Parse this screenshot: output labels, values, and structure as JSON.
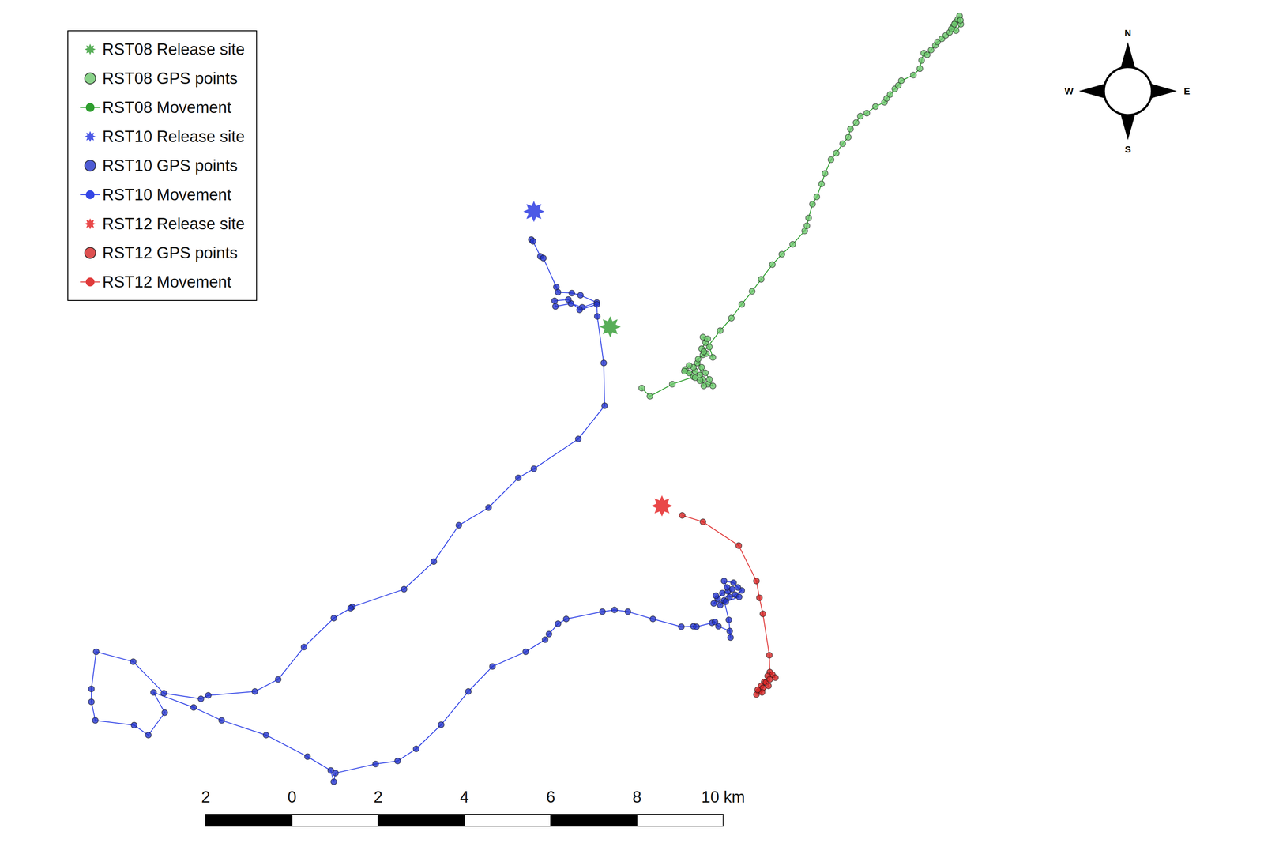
{
  "chart_data": {
    "type": "scatter",
    "xlim": [
      -6.77,
      22.54
    ],
    "ylim": [
      -0.52,
      19.01
    ],
    "tick_labels": false,
    "grid": false,
    "legend": "upper left",
    "compass": [
      "N",
      "E",
      "S",
      "W"
    ],
    "scale_bar": {
      "ticks": [
        {
          "value": -2,
          "label": "2"
        },
        0,
        2,
        4,
        6,
        8,
        {
          "value": 10,
          "label": "10 km"
        }
      ]
    },
    "tracks": [
      {
        "release_site": {
          "label": "RST08 Release site",
          "color": "#2e9a2e",
          "marker": "star",
          "x": 7.38,
          "y": 11.44
        },
        "gps_points": {
          "label": "RST08 GPS points",
          "color": "#6cc56c",
          "marker": "circle"
        },
        "movement": {
          "label": "RST08 Movement",
          "color": "#2e9e2e",
          "line_style": "solid"
        },
        "x": [
          8.11,
          8.3,
          8.82,
          9.31,
          9.12,
          9.21,
          9.35,
          9.46,
          9.53,
          9.64,
          9.76,
          9.68,
          9.59,
          9.5,
          9.4,
          9.31,
          9.21,
          9.1,
          9.35,
          9.46,
          9.55,
          9.42,
          9.53,
          9.61,
          9.76,
          9.68,
          9.59,
          9.53,
          9.64,
          9.5,
          9.55,
          9.93,
          10.19,
          10.43,
          10.67,
          10.88,
          11.14,
          11.36,
          11.61,
          11.89,
          11.94,
          11.98,
          12.07,
          12.17,
          12.28,
          12.36,
          12.5,
          12.62,
          12.77,
          12.9,
          12.95,
          13.08,
          13.18,
          13.33,
          13.53,
          13.74,
          13.79,
          13.87,
          13.98,
          14.06,
          14.13,
          14.41,
          14.56,
          14.6,
          14.65,
          14.73,
          14.82,
          14.92,
          14.97,
          15.07,
          15.16,
          15.25,
          15.33,
          15.38,
          15.44,
          15.48,
          15.51,
          15.4,
          15.29,
          15.36,
          15.5
        ],
        "y": [
          10.02,
          9.83,
          10.11,
          10.28,
          10.45,
          10.37,
          10.41,
          10.32,
          10.22,
          10.11,
          10.07,
          10.22,
          10.37,
          10.5,
          10.6,
          10.5,
          10.54,
          10.41,
          10.26,
          10.19,
          10.07,
          10.69,
          10.79,
          10.82,
          10.73,
          10.97,
          11.07,
          11.2,
          11.16,
          10.93,
          10.86,
          11.35,
          11.64,
          11.96,
          12.26,
          12.54,
          12.88,
          13.12,
          13.35,
          13.66,
          13.78,
          13.96,
          14.28,
          14.45,
          14.75,
          14.99,
          15.31,
          15.46,
          15.68,
          15.83,
          16.02,
          16.17,
          16.32,
          16.39,
          16.54,
          16.64,
          16.73,
          16.82,
          16.95,
          17.03,
          17.14,
          17.27,
          17.42,
          17.61,
          17.78,
          17.74,
          17.85,
          17.96,
          18.04,
          18.11,
          18.19,
          18.26,
          18.39,
          18.49,
          18.56,
          18.64,
          18.45,
          18.3,
          18.34,
          18.45,
          18.54
        ]
      },
      {
        "release_site": {
          "label": "RST10 Release site",
          "color": "#1f2fe0",
          "marker": "star",
          "x": 5.61,
          "y": 14.11
        },
        "gps_points": {
          "label": "RST10 GPS points",
          "color": "#2232c8",
          "marker": "circle"
        },
        "movement": {
          "label": "RST10 Movement",
          "color": "#3446e6",
          "line_style": "solid"
        },
        "x": [
          5.55,
          5.59,
          5.76,
          5.83,
          6.13,
          6.17,
          6.49,
          6.69,
          7.07,
          6.73,
          6.47,
          6.11,
          6.09,
          6.41,
          6.67,
          7.07,
          7.08,
          7.23,
          7.25,
          6.64,
          5.61,
          5.25,
          4.56,
          3.87,
          3.29,
          2.6,
          1.4,
          1.36,
          0.97,
          0.28,
          -0.32,
          -0.86,
          -1.94,
          -2.11,
          -2.97,
          -3.68,
          -4.54,
          -4.65,
          -4.65,
          -4.56,
          -3.66,
          -3.33,
          -2.95,
          -3.21,
          -2.28,
          -1.63,
          -0.6,
          0.36,
          0.9,
          0.97,
          1.01,
          1.94,
          2.45,
          2.88,
          3.46,
          4.09,
          4.65,
          5.42,
          5.87,
          5.96,
          6.17,
          6.36,
          7.2,
          7.48,
          7.79,
          8.37,
          9.03,
          9.31,
          9.38,
          9.74,
          9.81,
          9.89,
          10.15,
          10.17,
          10.13,
          10.02,
          9.78,
          9.87,
          9.98,
          10.11,
          10.15,
          10.28,
          10.43,
          10.34,
          10.24,
          10.02,
          10.09,
          10.21,
          9.93,
          10.06,
          10.37,
          9.83
        ],
        "y": [
          13.46,
          13.42,
          13.07,
          13.03,
          12.36,
          12.24,
          12.22,
          12.17,
          12.0,
          11.89,
          11.98,
          11.91,
          12.04,
          12.07,
          11.83,
          11.96,
          11.68,
          10.6,
          9.61,
          8.84,
          8.15,
          7.94,
          7.25,
          6.84,
          6.0,
          5.36,
          4.95,
          4.92,
          4.69,
          4.02,
          3.27,
          2.99,
          2.9,
          2.82,
          2.95,
          3.68,
          3.91,
          3.05,
          2.75,
          2.32,
          2.21,
          1.98,
          2.5,
          2.97,
          2.62,
          2.32,
          1.98,
          1.48,
          1.16,
          0.9,
          1.1,
          1.31,
          1.38,
          1.66,
          2.22,
          2.99,
          3.57,
          3.91,
          4.19,
          4.32,
          4.56,
          4.67,
          4.84,
          4.88,
          4.84,
          4.67,
          4.49,
          4.5,
          4.49,
          4.58,
          4.6,
          4.5,
          4.39,
          4.24,
          4.65,
          5.1,
          5.03,
          5.14,
          5.27,
          5.31,
          5.18,
          5.23,
          5.33,
          5.4,
          5.51,
          5.55,
          5.4,
          5.36,
          4.99,
          5.07,
          5.18,
          5.21
        ]
      },
      {
        "release_site": {
          "label": "RST12 Release site",
          "color": "#e31a1c",
          "marker": "star",
          "x": 8.58,
          "y": 7.29
        },
        "gps_points": {
          "label": "RST12 GPS points",
          "color": "#d42424",
          "marker": "circle"
        },
        "movement": {
          "label": "RST12 Movement",
          "color": "#e03a3a",
          "line_style": "solid"
        },
        "x": [
          9.05,
          9.53,
          10.36,
          10.77,
          10.84,
          10.92,
          11.07,
          11.08,
          11.14,
          11.21,
          11.03,
          10.95,
          10.88,
          10.82,
          10.77,
          10.92,
          10.99,
          11.08,
          11.05,
          10.9,
          10.8
        ],
        "y": [
          7.07,
          6.92,
          6.37,
          5.55,
          5.16,
          4.79,
          3.83,
          3.44,
          3.38,
          3.31,
          3.35,
          3.21,
          3.12,
          2.99,
          2.92,
          3.07,
          3.2,
          3.27,
          3.12,
          2.97,
          3.03
        ]
      }
    ]
  }
}
